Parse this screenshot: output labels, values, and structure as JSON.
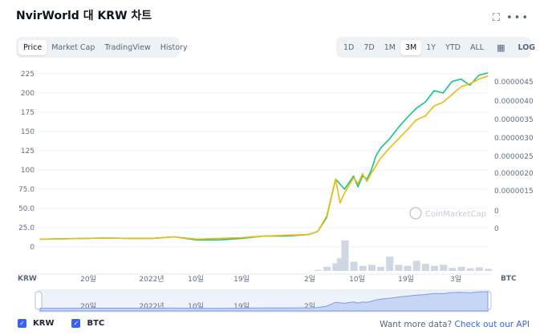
{
  "header": {
    "title": "NvirWorld 대 KRW 차트",
    "expand_icon": "expand-icon",
    "more_icon": "more-dots-icon"
  },
  "view_tabs": [
    {
      "label": "Price",
      "active": true
    },
    {
      "label": "Market Cap",
      "active": false
    },
    {
      "label": "TradingView",
      "active": false
    },
    {
      "label": "History",
      "active": false
    }
  ],
  "range_tabs": [
    {
      "label": "1D",
      "active": false
    },
    {
      "label": "7D",
      "active": false
    },
    {
      "label": "1M",
      "active": false
    },
    {
      "label": "3M",
      "active": true
    },
    {
      "label": "1Y",
      "active": false
    },
    {
      "label": "YTD",
      "active": false
    },
    {
      "label": "ALL",
      "active": false
    }
  ],
  "calendar_icon": "calendar-icon",
  "log_label": "LOG",
  "watermark": "CoinMarketCap",
  "chart_data": {
    "type": "line",
    "left_axis": {
      "label": "KRW",
      "ticks": [
        "225",
        "200",
        "175",
        "150",
        "125",
        "100",
        "75.0",
        "50.0",
        "25.0",
        "0"
      ],
      "range": [
        -25,
        225
      ]
    },
    "right_axis": {
      "label": "BTC",
      "ticks": [
        "0.0000045",
        "0.0000040",
        "0.0000035",
        "0.0000030",
        "0.0000025",
        "0.0000020",
        "0.0000015",
        "0",
        "0"
      ]
    },
    "x_ticks": [
      "20일",
      "2022년",
      "10일",
      "19일",
      "2일",
      "10일",
      "19일",
      "3일"
    ],
    "navigator_ticks": [
      "20일",
      "2022년",
      "10일",
      "19일",
      "2일",
      "10일",
      "19일",
      "3일"
    ],
    "series": [
      {
        "name": "KRW",
        "color": "#16c784",
        "x": [
          0,
          5,
          10,
          15,
          20,
          25,
          30,
          35,
          40,
          45,
          50,
          55,
          60,
          62,
          64,
          66,
          68,
          70,
          71,
          72,
          73,
          74,
          75,
          76,
          78,
          80,
          82,
          84,
          86,
          88,
          90,
          92,
          94,
          96,
          98,
          100
        ],
        "values": [
          10,
          10.5,
          11,
          11.5,
          11,
          11,
          13,
          9,
          9,
          11,
          14,
          14,
          16,
          20,
          38,
          88,
          75,
          92,
          78,
          92,
          88,
          100,
          118,
          128,
          140,
          155,
          168,
          180,
          188,
          203,
          200,
          215,
          218,
          210,
          223,
          226
        ]
      },
      {
        "name": "BTC",
        "color": "#f0b90b",
        "x": [
          0,
          5,
          10,
          15,
          20,
          25,
          30,
          35,
          40,
          45,
          50,
          55,
          60,
          62,
          64,
          66,
          67,
          68,
          70,
          71,
          72,
          73,
          74,
          75,
          76,
          78,
          80,
          82,
          84,
          86,
          88,
          90,
          92,
          94,
          96,
          98,
          100
        ],
        "values": [
          10,
          10.5,
          11,
          11.5,
          11,
          11,
          13,
          10,
          11,
          12,
          14,
          15,
          16,
          20,
          40,
          88,
          57,
          70,
          90,
          82,
          95,
          85,
          96,
          105,
          115,
          128,
          140,
          152,
          165,
          170,
          183,
          188,
          198,
          208,
          212,
          218,
          222
        ]
      }
    ],
    "volume": {
      "color": "#cfd6e4",
      "x": [
        62,
        64,
        66,
        67,
        68,
        70,
        72,
        74,
        76,
        78,
        80,
        82,
        84,
        86,
        88,
        90,
        92,
        94,
        96,
        98,
        100
      ],
      "values": [
        2,
        8,
        15,
        25,
        60,
        18,
        10,
        12,
        8,
        28,
        12,
        10,
        20,
        14,
        10,
        12,
        6,
        8,
        5,
        7,
        4
      ]
    }
  },
  "legend": [
    {
      "label": "KRW",
      "icon": "check-icon"
    },
    {
      "label": "BTC",
      "icon": "check-icon"
    }
  ],
  "footer": {
    "prefix": "Want more data? ",
    "link": "Check out our API"
  }
}
